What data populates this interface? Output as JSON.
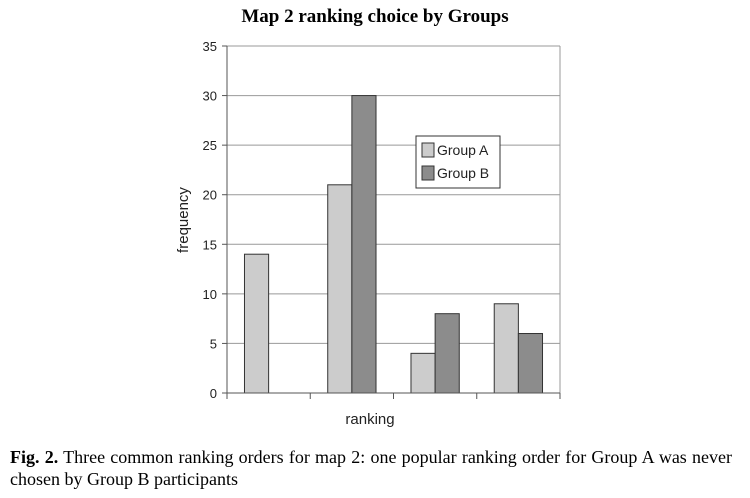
{
  "chart_data": {
    "type": "bar",
    "title": "Map 2 ranking choice by Groups",
    "xlabel": "ranking",
    "ylabel": "frequency",
    "ylim": [
      0,
      35
    ],
    "yticks": [
      0,
      5,
      10,
      15,
      20,
      25,
      30,
      35
    ],
    "categories": [
      "",
      "",
      "",
      ""
    ],
    "series": [
      {
        "name": "Group A",
        "color": "#cccccc",
        "values": [
          14,
          21,
          4,
          9
        ]
      },
      {
        "name": "Group B",
        "color": "#8c8c8c",
        "values": [
          0,
          30,
          8,
          6
        ]
      }
    ],
    "grid": "horizontal",
    "legend_position": "right"
  },
  "caption": {
    "label": "Fig. 2.",
    "text": " Three common ranking orders for map 2: one popular ranking order for Group A was never chosen by Group B participants"
  }
}
